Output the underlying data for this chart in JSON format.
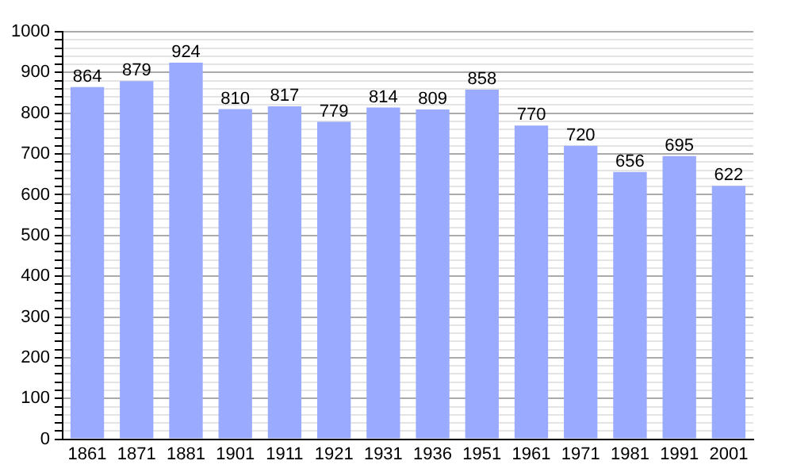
{
  "chart_data": {
    "type": "bar",
    "categories": [
      "1861",
      "1871",
      "1881",
      "1901",
      "1911",
      "1921",
      "1931",
      "1936",
      "1951",
      "1961",
      "1971",
      "1981",
      "1991",
      "2001"
    ],
    "values": [
      864,
      879,
      924,
      810,
      817,
      779,
      814,
      809,
      858,
      770,
      720,
      656,
      695,
      622
    ],
    "color": "#99aaff",
    "ylim": [
      0,
      1000
    ],
    "yticks": [
      0,
      {
        "value": 20,
        "label": null
      },
      {
        "value": 40,
        "label": null
      },
      {
        "value": 60,
        "label": null
      },
      {
        "value": 80,
        "label": null
      },
      100,
      {
        "value": 120,
        "label": null
      },
      {
        "value": 140,
        "label": null
      },
      {
        "value": 160,
        "label": null
      },
      {
        "value": 180,
        "label": null
      },
      200,
      {
        "value": 220,
        "label": null
      },
      {
        "value": 240,
        "label": null
      },
      {
        "value": 260,
        "label": null
      },
      {
        "value": 280,
        "label": null
      },
      300,
      {
        "value": 320,
        "label": null
      },
      {
        "value": 340,
        "label": null
      },
      {
        "value": 360,
        "label": null
      },
      {
        "value": 380,
        "label": null
      },
      400,
      {
        "value": 420,
        "label": null
      },
      {
        "value": 440,
        "label": null
      },
      {
        "value": 460,
        "label": null
      },
      {
        "value": 480,
        "label": null
      },
      500,
      {
        "value": 520,
        "label": null
      },
      {
        "value": 540,
        "label": null
      },
      {
        "value": 560,
        "label": null
      },
      {
        "value": 580,
        "label": null
      },
      600,
      {
        "value": 620,
        "label": null
      },
      {
        "value": 640,
        "label": null
      },
      {
        "value": 660,
        "label": null
      },
      {
        "value": 680,
        "label": null
      },
      700,
      {
        "value": 720,
        "label": null
      },
      {
        "value": 740,
        "label": null
      },
      {
        "value": 760,
        "label": null
      },
      {
        "value": 780,
        "label": null
      },
      800,
      {
        "value": 820,
        "label": null
      },
      {
        "value": 840,
        "label": null
      },
      {
        "value": 860,
        "label": null
      },
      {
        "value": 880,
        "label": null
      },
      900,
      {
        "value": 920,
        "label": null
      },
      {
        "value": 940,
        "label": null
      },
      {
        "value": 960,
        "label": null
      },
      {
        "value": 980,
        "label": null
      },
      1000
    ],
    "grid": "y",
    "data_labels": true
  }
}
